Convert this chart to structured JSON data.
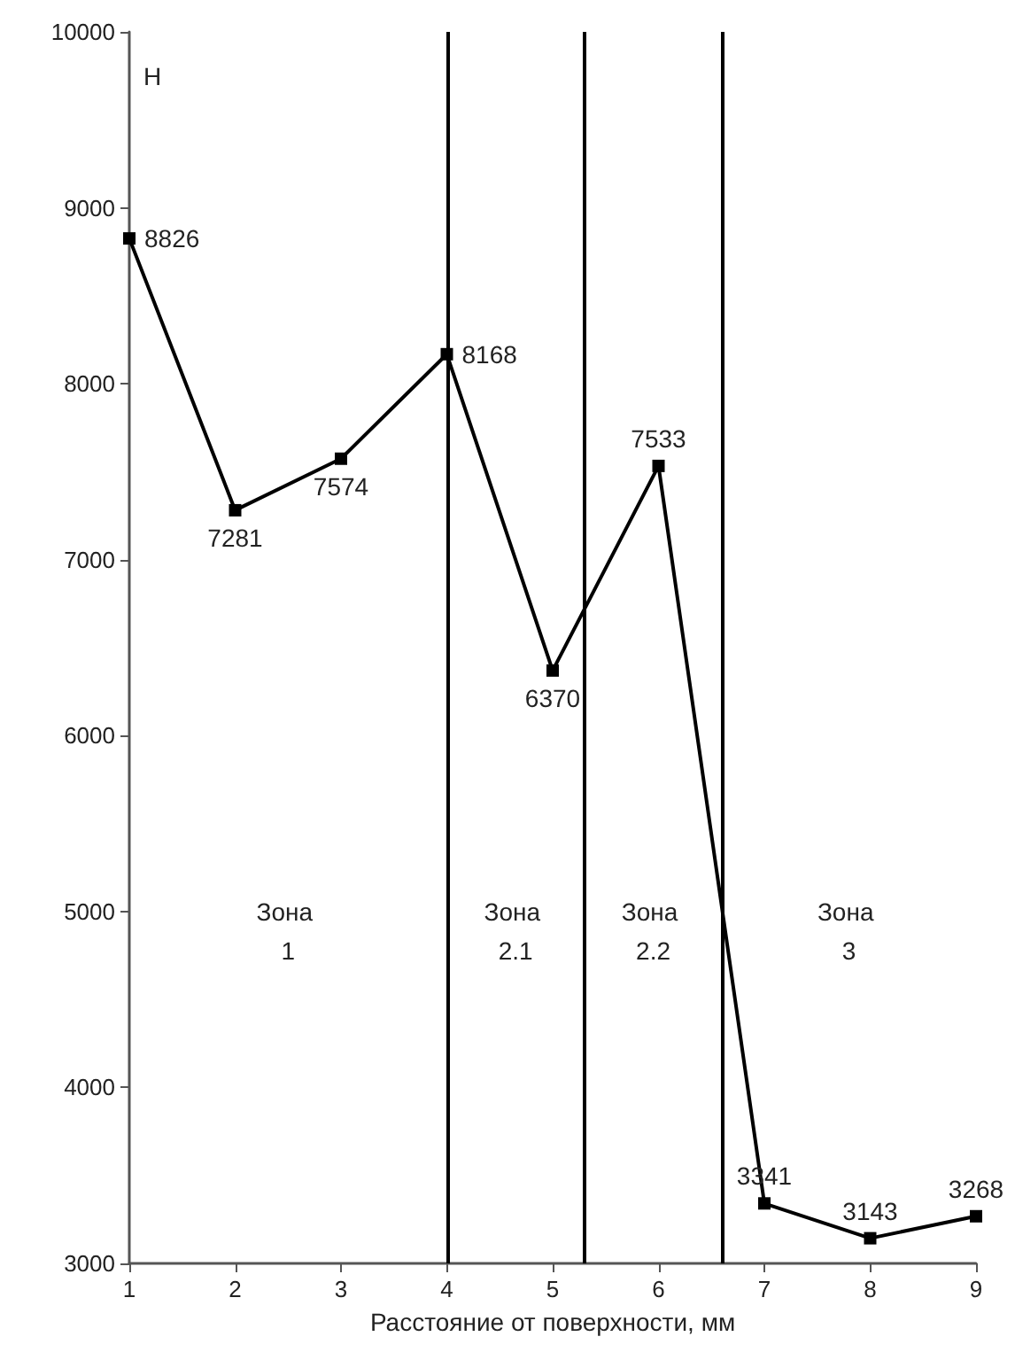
{
  "chart_data": {
    "type": "line",
    "xlabel": "Расстояние от поверхности, мм",
    "ylabel": "Н",
    "x": [
      1,
      2,
      3,
      4,
      5,
      6,
      7,
      8,
      9
    ],
    "series": [
      {
        "color": "#000000",
        "values": [
          8826,
          7281,
          7574,
          8168,
          6370,
          7533,
          3341,
          3143,
          3268
        ]
      }
    ],
    "xlim": [
      1,
      9
    ],
    "xticks": [
      1,
      2,
      3,
      4,
      5,
      6,
      7,
      8,
      9
    ],
    "ylim": [
      3000,
      10000
    ],
    "yticks": [
      3000,
      4000,
      5000,
      6000,
      7000,
      8000,
      9000,
      10000
    ],
    "ref_lines": [
      {
        "axis": "x",
        "value": 4,
        "color": "#000000"
      },
      {
        "axis": "x",
        "value": 5.3,
        "color": "#000000"
      },
      {
        "axis": "x",
        "value": 6.6,
        "color": "#000000"
      }
    ],
    "annotations": [
      "Зона 1",
      "Зона 2.1",
      "Зона 2.2",
      "Зона 3"
    ],
    "data_labels": true,
    "marker": "square",
    "line_style": "solid",
    "grid": false
  }
}
